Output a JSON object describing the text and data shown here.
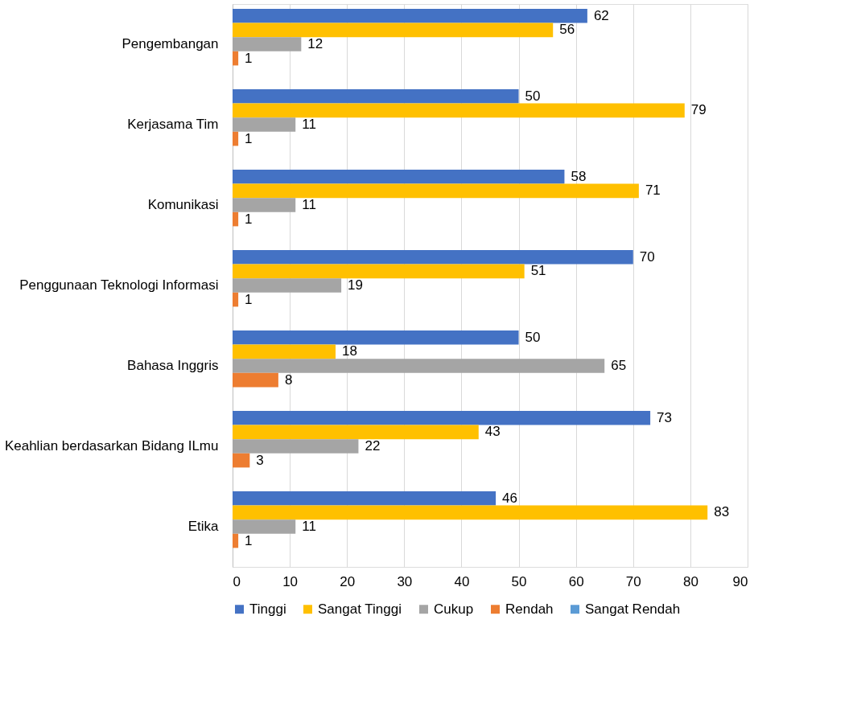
{
  "chart_data": {
    "type": "bar",
    "orientation": "horizontal",
    "categories": [
      "Pengembangan",
      "Kerjasama Tim",
      "Komunikasi",
      "Penggunaan Teknologi Informasi",
      "Bahasa Inggris",
      "Keahlian berdasarkan Bidang ILmu",
      "Etika"
    ],
    "series": [
      {
        "name": "Tinggi",
        "color": "#4472c4",
        "values": [
          62,
          50,
          58,
          70,
          50,
          73,
          46
        ]
      },
      {
        "name": "Sangat Tinggi",
        "color": "#ffc000",
        "values": [
          56,
          79,
          71,
          51,
          18,
          43,
          83
        ]
      },
      {
        "name": "Cukup",
        "color": "#a5a5a5",
        "values": [
          12,
          11,
          11,
          19,
          65,
          22,
          11
        ]
      },
      {
        "name": "Rendah",
        "color": "#ed7d31",
        "values": [
          1,
          1,
          1,
          1,
          8,
          3,
          1
        ]
      },
      {
        "name": "Sangat Rendah",
        "color": "#5b9bd5",
        "values": [
          null,
          null,
          null,
          null,
          null,
          null,
          null
        ]
      }
    ],
    "xlim": [
      0,
      90
    ],
    "xticks": [
      0,
      10,
      20,
      30,
      40,
      50,
      60,
      70,
      80,
      90
    ],
    "grid": "x",
    "legend": "bottom",
    "data_labels": true
  }
}
